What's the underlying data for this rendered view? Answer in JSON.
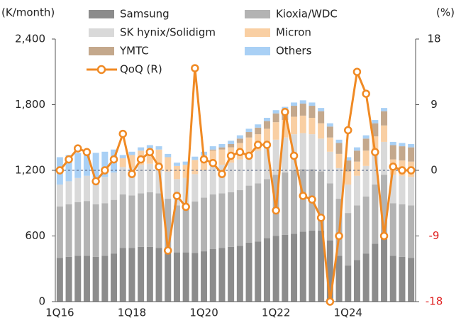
{
  "chart_data": {
    "type": "bar",
    "stacked": true,
    "y_label": "(K/month)",
    "y2_label": "(%)",
    "categories": [
      "1Q16",
      null,
      null,
      null,
      null,
      null,
      null,
      null,
      "1Q18",
      null,
      null,
      null,
      null,
      null,
      null,
      null,
      "1Q20",
      null,
      null,
      null,
      null,
      null,
      null,
      null,
      "1Q22",
      null,
      null,
      null,
      null,
      null,
      null,
      null,
      "1Q24",
      null,
      null,
      null,
      null,
      null,
      null,
      null
    ],
    "series": [
      {
        "name": "Samsung",
        "color": "#8c8c8c",
        "values": [
          400,
          410,
          420,
          420,
          410,
          420,
          440,
          490,
          490,
          500,
          500,
          490,
          470,
          450,
          450,
          445,
          460,
          480,
          490,
          500,
          510,
          540,
          550,
          580,
          600,
          610,
          620,
          640,
          650,
          650,
          560,
          420,
          330,
          380,
          440,
          530,
          600,
          420,
          410,
          400
        ]
      },
      {
        "name": "Kioxia/WDC",
        "color": "#b3b3b3",
        "values": [
          470,
          480,
          490,
          500,
          480,
          480,
          490,
          490,
          480,
          490,
          500,
          500,
          470,
          430,
          440,
          470,
          490,
          500,
          500,
          500,
          510,
          520,
          530,
          540,
          560,
          570,
          580,
          570,
          560,
          540,
          520,
          520,
          480,
          500,
          520,
          540,
          560,
          480,
          480,
          480
        ]
      },
      {
        "name": "SK hynix/Solidigm",
        "color": "#d9d9d9",
        "values": [
          200,
          210,
          220,
          230,
          230,
          240,
          250,
          250,
          250,
          260,
          260,
          260,
          250,
          240,
          240,
          250,
          250,
          260,
          260,
          270,
          280,
          290,
          300,
          310,
          320,
          320,
          330,
          330,
          320,
          300,
          290,
          280,
          260,
          270,
          280,
          290,
          300,
          260,
          260,
          260
        ]
      },
      {
        "name": "Micron",
        "color": "#f9cfa3",
        "values": [
          0,
          0,
          0,
          0,
          0,
          0,
          0,
          80,
          120,
          130,
          140,
          140,
          130,
          120,
          120,
          130,
          140,
          140,
          140,
          140,
          150,
          150,
          150,
          150,
          160,
          160,
          160,
          160,
          150,
          140,
          130,
          130,
          120,
          130,
          140,
          150,
          150,
          140,
          140,
          140
        ]
      },
      {
        "name": "YMTC",
        "color": "#c4a88c",
        "values": [
          0,
          0,
          0,
          0,
          0,
          0,
          0,
          0,
          0,
          0,
          0,
          0,
          0,
          0,
          0,
          0,
          0,
          10,
          20,
          30,
          40,
          50,
          60,
          70,
          80,
          90,
          100,
          110,
          110,
          110,
          100,
          100,
          100,
          100,
          110,
          120,
          130,
          130,
          130,
          130
        ]
      },
      {
        "name": "Others",
        "color": "#a9d0f5",
        "values": [
          250,
          240,
          230,
          230,
          240,
          230,
          210,
          30,
          30,
          30,
          30,
          30,
          30,
          30,
          30,
          30,
          30,
          30,
          30,
          30,
          30,
          30,
          30,
          30,
          30,
          30,
          30,
          30,
          30,
          30,
          30,
          30,
          30,
          30,
          30,
          30,
          30,
          30,
          30,
          30
        ]
      },
      {
        "name": "QoQ (R)",
        "color": "#f08a24",
        "axis": "y2",
        "type": "line",
        "values": [
          0,
          1.5,
          3,
          2.5,
          -1.5,
          0,
          1.5,
          5,
          -0.5,
          1.5,
          2.5,
          0.5,
          -11,
          -3.5,
          -5,
          14,
          1.5,
          1,
          -0.5,
          2,
          2.5,
          2,
          3.5,
          3.5,
          -5.5,
          8,
          2,
          -3.5,
          -4,
          -6.5,
          -18,
          -9,
          5.5,
          13.5,
          10.5,
          2.5,
          -9,
          0.5,
          0,
          0
        ]
      }
    ],
    "ylim": [
      0,
      2400
    ],
    "yticks": [
      0,
      {
        "value": 600,
        "label": "600"
      },
      {
        "value": 1200,
        "label": "1,200"
      },
      {
        "value": 1800,
        "label": "1,800"
      },
      {
        "value": 2400,
        "label": "2,400"
      }
    ],
    "y2lim": [
      -18,
      18
    ],
    "y2ticks": [
      -18,
      -9,
      0,
      9,
      18
    ],
    "y2_negative_color": "#e02020"
  }
}
